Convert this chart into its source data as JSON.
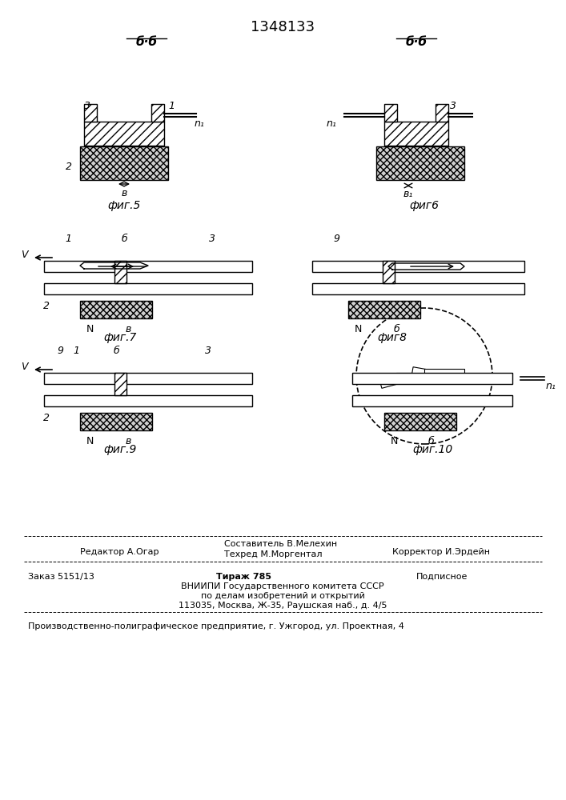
{
  "title": "1348133",
  "bg_color": "#ffffff",
  "text_color": "#000000",
  "fig5_label": "фиг.5",
  "fig6_label": "фиг6",
  "fig7_label": "фиг.7",
  "fig8_label": "фиг8",
  "fig9_label": "фиг.9",
  "fig10_label": "фиг.10",
  "header_line1": "Составитель В.Мелехин",
  "header_line2_left": "Редактор А.Огар",
  "header_line2_mid": "Техред М.Моргентал",
  "header_line2_right": "Корректор И.Эрдейн",
  "footer_line1_left": "Заказ 5151/13",
  "footer_line1_mid": "Тираж 785",
  "footer_line1_right": "Подписное",
  "footer_line2": "ВНИИПИ Государственного комитета СССР",
  "footer_line3": "по делам изобретений и открытий",
  "footer_line4": "113035, Москва, Ж-35, Раушская наб., д. 4/5",
  "footer_line5": "Производственно-полиграфическое предприятие, г. Ужгород, ул. Проектная, 4"
}
